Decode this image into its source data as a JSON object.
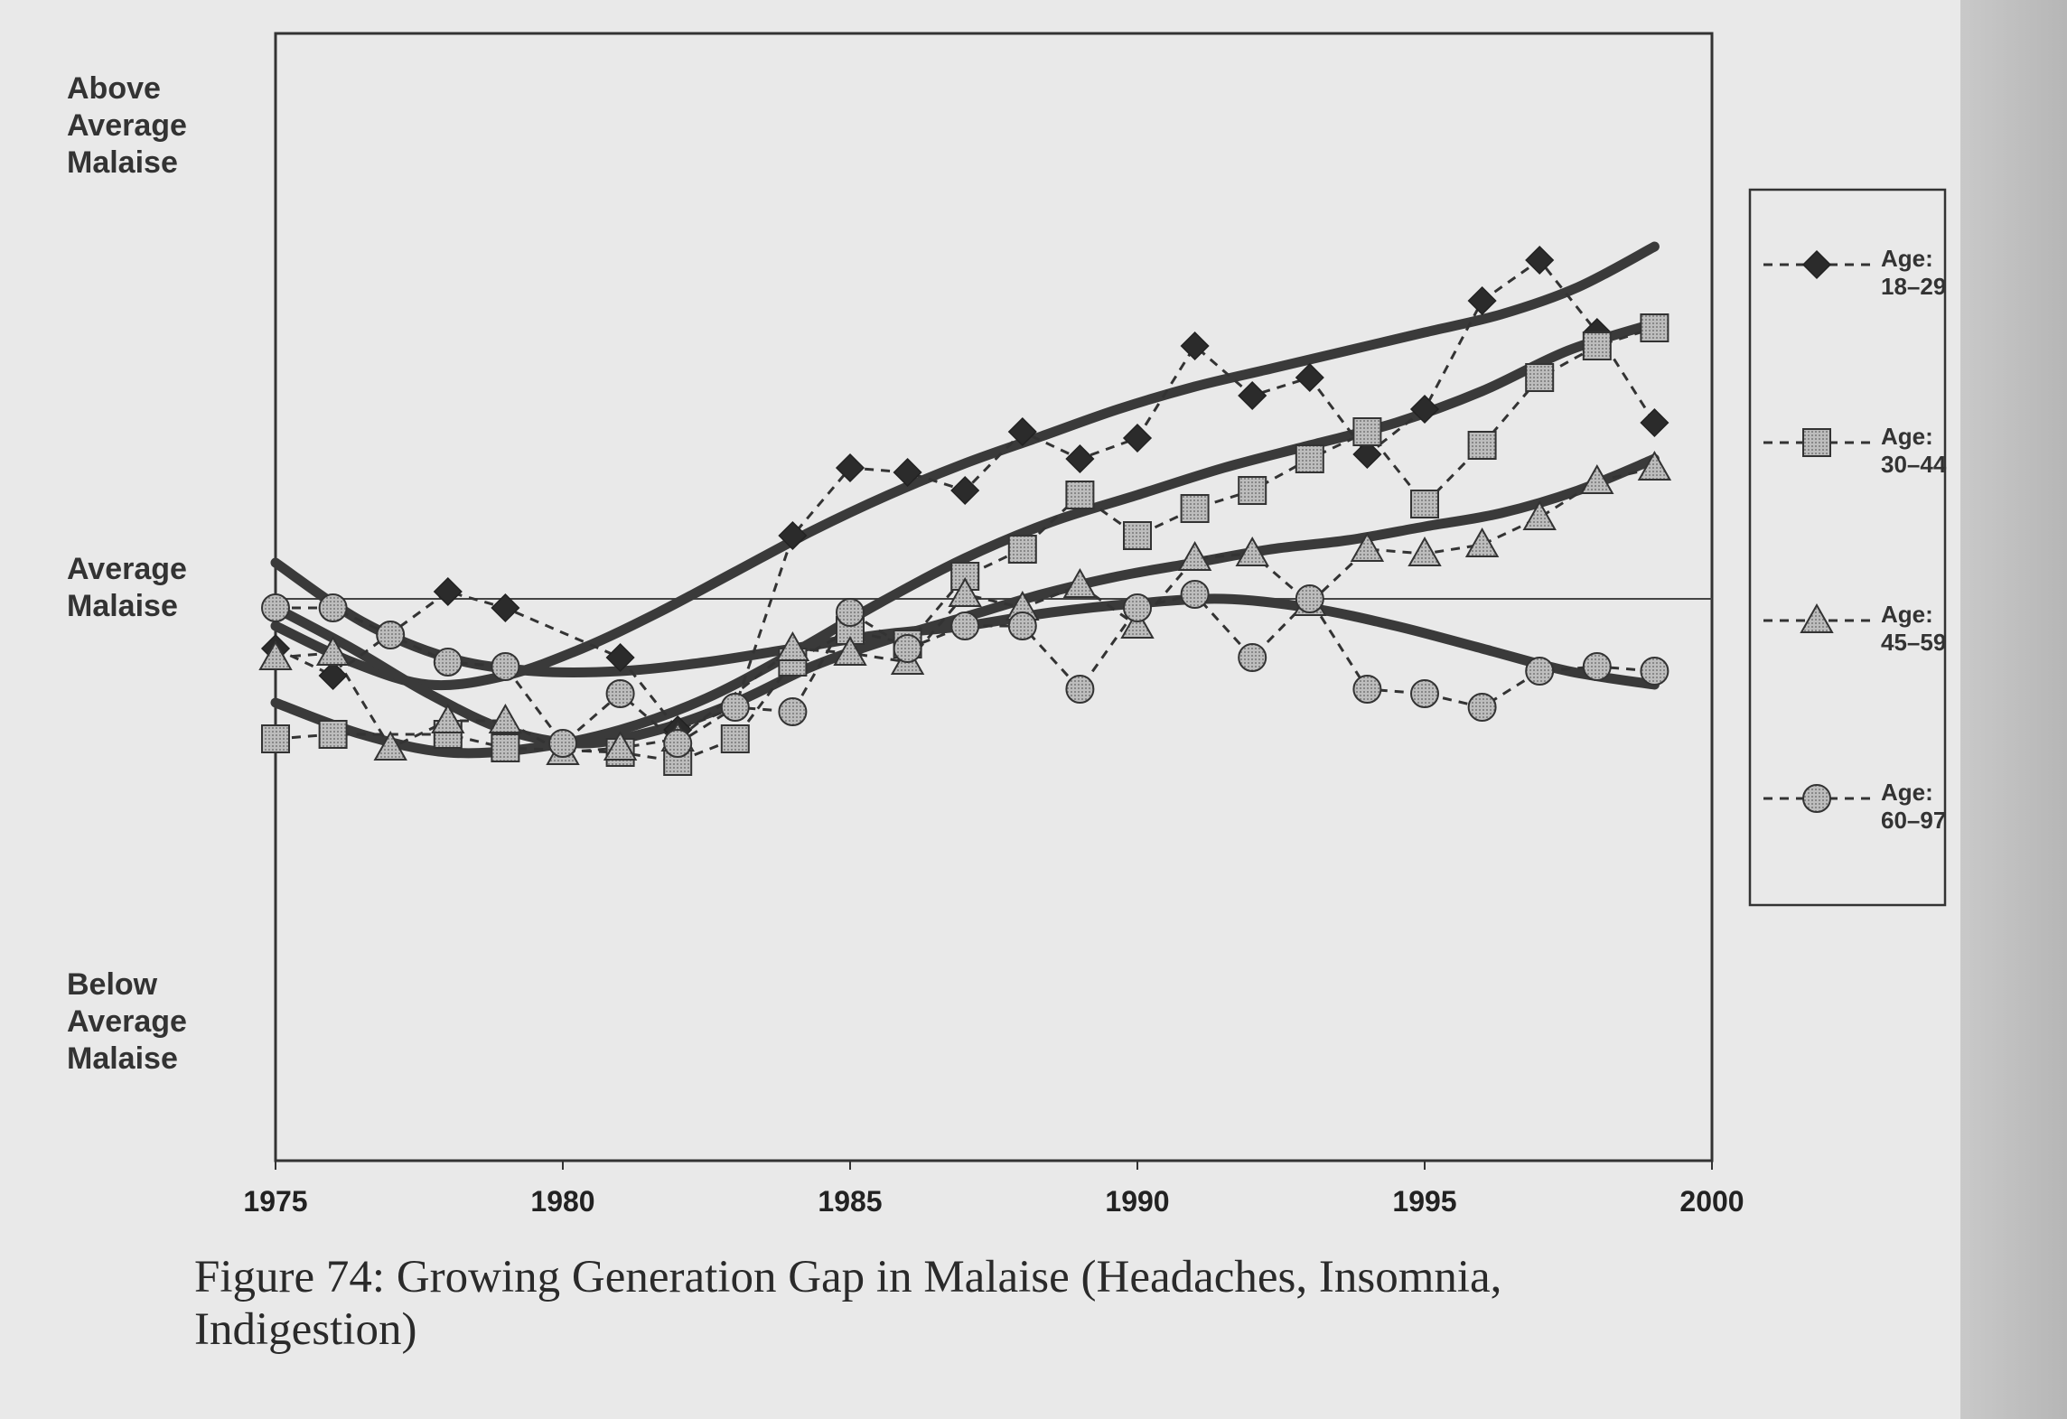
{
  "chart_data": {
    "type": "line",
    "title": "Figure 74: Growing Generation Gap in Malaise (Headaches, Insomnia, Indigestion)",
    "xlabel": "",
    "ylabel": "",
    "xlim": [
      1975,
      2000
    ],
    "ylim": [
      -4,
      4
    ],
    "x_ticks": [
      "1975",
      "1980",
      "1985",
      "1990",
      "1995",
      "2000"
    ],
    "y_tick_labels": {
      "top": "Above Average Malaise",
      "middle": "Average Malaise",
      "bottom": "Below Average Malaise"
    },
    "reference_line": {
      "y": 0,
      "label": "Average Malaise"
    },
    "grid": false,
    "legend_position": "right",
    "series": [
      {
        "name": "Age: 18–29",
        "name_line1": "Age:",
        "name_line2": "18–29",
        "marker": "diamond",
        "x": [
          1975,
          1976,
          1978,
          1979,
          1981,
          1982,
          1983,
          1984,
          1985,
          1986,
          1987,
          1988,
          1989,
          1990,
          1991,
          1992,
          1993,
          1994,
          1995,
          1996,
          1997,
          1998,
          1999
        ],
        "values": [
          -0.55,
          -0.85,
          0.08,
          -0.1,
          -0.65,
          -1.45,
          -1.2,
          0.7,
          1.45,
          1.4,
          1.2,
          1.85,
          1.55,
          1.78,
          2.8,
          2.25,
          2.45,
          1.6,
          2.1,
          3.3,
          3.75,
          2.95,
          1.95
        ],
        "trend": [
          -0.3,
          -0.7,
          -0.95,
          -0.85,
          -0.55,
          -0.15,
          0.3,
          0.75,
          1.15,
          1.5,
          1.8,
          2.1,
          2.35,
          2.55,
          2.75,
          2.95,
          3.15,
          3.45,
          3.9
        ]
      },
      {
        "name": "Age: 30–44",
        "name_line1": "Age:",
        "name_line2": "30–44",
        "marker": "square",
        "x": [
          1975,
          1976,
          1978,
          1979,
          1981,
          1982,
          1983,
          1984,
          1985,
          1986,
          1987,
          1988,
          1989,
          1990,
          1991,
          1992,
          1993,
          1994,
          1995,
          1996,
          1997,
          1998,
          1999
        ],
        "values": [
          -1.55,
          -1.5,
          -1.5,
          -1.65,
          -1.7,
          -1.8,
          -1.55,
          -0.7,
          -0.35,
          -0.5,
          0.25,
          0.55,
          1.15,
          0.7,
          1.0,
          1.2,
          1.55,
          1.85,
          1.05,
          1.7,
          2.45,
          2.8,
          3.0
        ],
        "trend": [
          -1.15,
          -1.5,
          -1.7,
          -1.65,
          -1.45,
          -1.1,
          -0.6,
          -0.05,
          0.45,
          0.85,
          1.15,
          1.45,
          1.7,
          1.95,
          2.3,
          2.75,
          3.05
        ]
      },
      {
        "name": "Age: 45–59",
        "name_line1": "Age:",
        "name_line2": "45–59",
        "marker": "triangle",
        "x": [
          1975,
          1976,
          1977,
          1978,
          1979,
          1980,
          1981,
          1982,
          1984,
          1985,
          1986,
          1987,
          1988,
          1989,
          1990,
          1991,
          1992,
          1993,
          1994,
          1995,
          1996,
          1997,
          1998,
          1999
        ],
        "values": [
          -0.65,
          -0.6,
          -1.65,
          -1.35,
          -1.35,
          -1.7,
          -1.65,
          -1.55,
          -0.55,
          -0.6,
          -0.7,
          0.05,
          -0.1,
          0.15,
          -0.3,
          0.45,
          0.5,
          -0.05,
          0.55,
          0.5,
          0.6,
          0.9,
          1.3,
          1.45
        ],
        "trend": [
          -0.1,
          -0.55,
          -1.05,
          -1.45,
          -1.6,
          -1.45,
          -1.15,
          -0.75,
          -0.45,
          -0.2,
          0.05,
          0.25,
          0.4,
          0.55,
          0.65,
          0.8,
          0.95,
          1.2,
          1.55
        ]
      },
      {
        "name": "Age: 60–97",
        "name_line1": "Age:",
        "name_line2": "60–97",
        "marker": "circle",
        "x": [
          1975,
          1976,
          1977,
          1978,
          1979,
          1980,
          1981,
          1982,
          1983,
          1984,
          1985,
          1986,
          1987,
          1988,
          1989,
          1990,
          1991,
          1992,
          1993,
          1994,
          1995,
          1996,
          1997,
          1998,
          1999
        ],
        "values": [
          -0.1,
          -0.1,
          -0.4,
          -0.7,
          -0.75,
          -1.6,
          -1.05,
          -1.6,
          -1.2,
          -1.25,
          -0.15,
          -0.55,
          -0.3,
          -0.3,
          -1.0,
          -0.1,
          0.05,
          -0.65,
          0.0,
          -1.0,
          -1.05,
          -1.2,
          -0.8,
          -0.75,
          -0.8
        ],
        "trend": [
          0.4,
          -0.25,
          -0.65,
          -0.8,
          -0.8,
          -0.7,
          -0.55,
          -0.4,
          -0.3,
          -0.15,
          -0.05,
          0.0,
          -0.1,
          -0.3,
          -0.55,
          -0.8,
          -0.95
        ]
      }
    ]
  },
  "labels": {
    "y_top": [
      "Above",
      "Average",
      "Malaise"
    ],
    "y_mid": [
      "Average",
      "Malaise"
    ],
    "y_bottom": [
      "Below",
      "Average",
      "Malaise"
    ],
    "caption_line1": "Figure 74: Growing Generation Gap in Malaise (Headaches, Insomnia,",
    "caption_line2": "Indigestion)"
  }
}
